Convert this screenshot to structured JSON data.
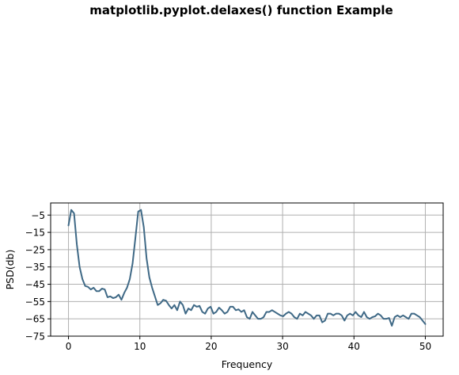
{
  "figure": {
    "suptitle": "matplotlib.pyplot.delaxes() function Example"
  },
  "colors": {
    "line": "#3f6986",
    "grid": "#b0b0b0",
    "axes": "#000000",
    "background": "#ffffff"
  },
  "chart_data": {
    "type": "line",
    "title": "",
    "xlabel": "Frequency",
    "ylabel": "PSD(db)",
    "xlim": [
      -2.5,
      52.5
    ],
    "ylim": [
      -75,
      2
    ],
    "xticks": [
      0,
      10,
      20,
      30,
      40,
      50
    ],
    "xtick_labels": [
      "0",
      "10",
      "20",
      "30",
      "40",
      "50"
    ],
    "yticks": [
      -5,
      -15,
      -25,
      -35,
      -45,
      -55,
      -65,
      -75
    ],
    "ytick_labels": [
      "−5",
      "−15",
      "−25",
      "−35",
      "−45",
      "−55",
      "−65",
      "−75"
    ],
    "grid": true,
    "legend": false,
    "series": [
      {
        "x": [
          0,
          0.39,
          0.78,
          1.17,
          1.56,
          1.95,
          2.34,
          2.73,
          3.13,
          3.52,
          3.91,
          4.3,
          4.69,
          5.08,
          5.47,
          5.86,
          6.25,
          6.64,
          7.03,
          7.42,
          7.81,
          8.2,
          8.59,
          8.98,
          9.38,
          9.77,
          10.16,
          10.55,
          10.94,
          11.33,
          11.72,
          12.11,
          12.5,
          12.89,
          13.28,
          13.67,
          14.06,
          14.45,
          14.84,
          15.23,
          15.63,
          16.02,
          16.41,
          16.8,
          17.19,
          17.58,
          17.97,
          18.36,
          18.75,
          19.14,
          19.53,
          19.92,
          20.31,
          20.7,
          21.09,
          21.48,
          21.88,
          22.27,
          22.66,
          23.05,
          23.44,
          23.83,
          24.22,
          24.61,
          25.0,
          25.39,
          25.78,
          26.17,
          26.56,
          26.95,
          27.34,
          27.73,
          28.13,
          28.52,
          28.91,
          29.3,
          29.69,
          30.08,
          30.47,
          30.86,
          31.25,
          31.64,
          32.03,
          32.42,
          32.81,
          33.2,
          33.59,
          33.98,
          34.38,
          34.77,
          35.16,
          35.55,
          35.94,
          36.33,
          36.72,
          37.11,
          37.5,
          37.89,
          38.28,
          38.67,
          39.06,
          39.45,
          39.84,
          40.23,
          40.63,
          41.02,
          41.41,
          41.8,
          42.19,
          42.58,
          42.97,
          43.36,
          43.75,
          44.14,
          44.53,
          44.92,
          45.31,
          45.7,
          46.09,
          46.48,
          46.88,
          47.27,
          47.66,
          48.05,
          48.44,
          48.83,
          49.22,
          49.61,
          50.0
        ],
        "values": [
          -11,
          -2,
          -4,
          -22,
          -35,
          -42,
          -46,
          -46.5,
          -48,
          -47,
          -49,
          -49,
          -47.5,
          -48,
          -52.5,
          -52,
          -53,
          -52.5,
          -51,
          -54,
          -50,
          -47,
          -42,
          -33,
          -18,
          -3,
          -2,
          -12,
          -30,
          -41,
          -47,
          -52,
          -57,
          -56,
          -54,
          -54.5,
          -57,
          -59,
          -57,
          -60,
          -55,
          -57,
          -62,
          -59,
          -60,
          -57,
          -58,
          -57.5,
          -61,
          -62,
          -59,
          -58,
          -62,
          -61,
          -58.5,
          -60,
          -62,
          -61,
          -58,
          -58,
          -60,
          -59.5,
          -61,
          -60,
          -64,
          -65,
          -61,
          -63,
          -65,
          -65,
          -64,
          -61,
          -61,
          -60,
          -61,
          -62,
          -63,
          -63.5,
          -62,
          -61,
          -62,
          -64,
          -65,
          -62,
          -63,
          -61,
          -62,
          -63,
          -65,
          -63,
          -63,
          -67,
          -66,
          -62,
          -62,
          -63,
          -62,
          -62,
          -63,
          -66,
          -63,
          -62,
          -63,
          -61,
          -63,
          -64,
          -61,
          -64,
          -65,
          -64,
          -63.5,
          -62,
          -63,
          -65,
          -65,
          -64.5,
          -69,
          -64,
          -63,
          -64,
          -63,
          -64,
          -65,
          -62,
          -62,
          -63,
          -64,
          -66,
          -68
        ]
      }
    ]
  }
}
